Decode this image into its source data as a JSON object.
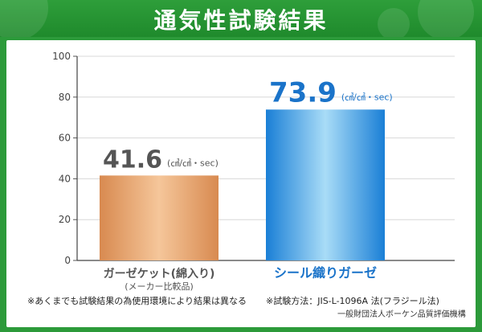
{
  "banner": {
    "title": "通気性試験結果",
    "color": "#2e9e3a"
  },
  "chart_data": {
    "type": "bar",
    "categories": [
      "ガーゼケット(綿入り)",
      "シール織りガーゼ"
    ],
    "category_notes": [
      "(メーカー比較品)",
      ""
    ],
    "values": [
      41.6,
      73.9
    ],
    "value_labels": [
      "41.6",
      "73.9"
    ],
    "unit": "(㎤/㎠・sec)",
    "yticks": [
      "0",
      "20",
      "40",
      "60",
      "80",
      "100"
    ],
    "ylim": [
      0,
      100
    ],
    "grid": true,
    "bar_colors": [
      "#e9a66e",
      "#1f86d8"
    ],
    "label_colors": [
      "#555555",
      "#1a73c9"
    ]
  },
  "footnotes": {
    "left": "※あくまでも試験結果の為使用環境により結果は異なる",
    "right": "※試験方法：JIS-L-1096A 法(フラジール法)",
    "org": "一般財団法人ボーケン品質評価機構"
  }
}
